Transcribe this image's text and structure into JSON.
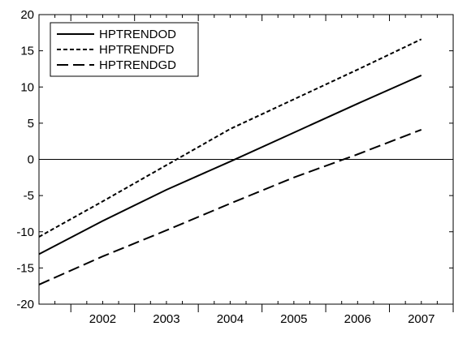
{
  "chart_data": {
    "type": "line",
    "title": "",
    "xlabel": "",
    "ylabel": "",
    "ylim": [
      -20,
      20
    ],
    "yticks": [
      -20,
      -15,
      -10,
      -5,
      0,
      5,
      10,
      15,
      20
    ],
    "xlim": [
      2001.5,
      2008.0
    ],
    "xticks": [
      "2002",
      "2003",
      "2004",
      "2005",
      "2006",
      "2007"
    ],
    "x": [
      2001.5,
      2002.5,
      2003.5,
      2004.5,
      2005.5,
      2006.5,
      2007.5
    ],
    "zero_line": true,
    "grid": false,
    "legend_position": "top-left",
    "series": [
      {
        "name": "HPTRENDOD",
        "style": "solid",
        "color": "#000000",
        "values": [
          -13.1,
          -8.5,
          -4.2,
          -0.3,
          3.7,
          7.7,
          11.6
        ]
      },
      {
        "name": "HPTRENDFD",
        "style": "dotted",
        "color": "#000000",
        "values": [
          -10.7,
          -5.8,
          -0.8,
          4.2,
          8.3,
          12.4,
          16.6
        ]
      },
      {
        "name": "HPTRENDGD",
        "style": "dashed",
        "color": "#000000",
        "values": [
          -17.3,
          -13.4,
          -9.8,
          -6.1,
          -2.5,
          0.7,
          4.1
        ]
      }
    ]
  }
}
